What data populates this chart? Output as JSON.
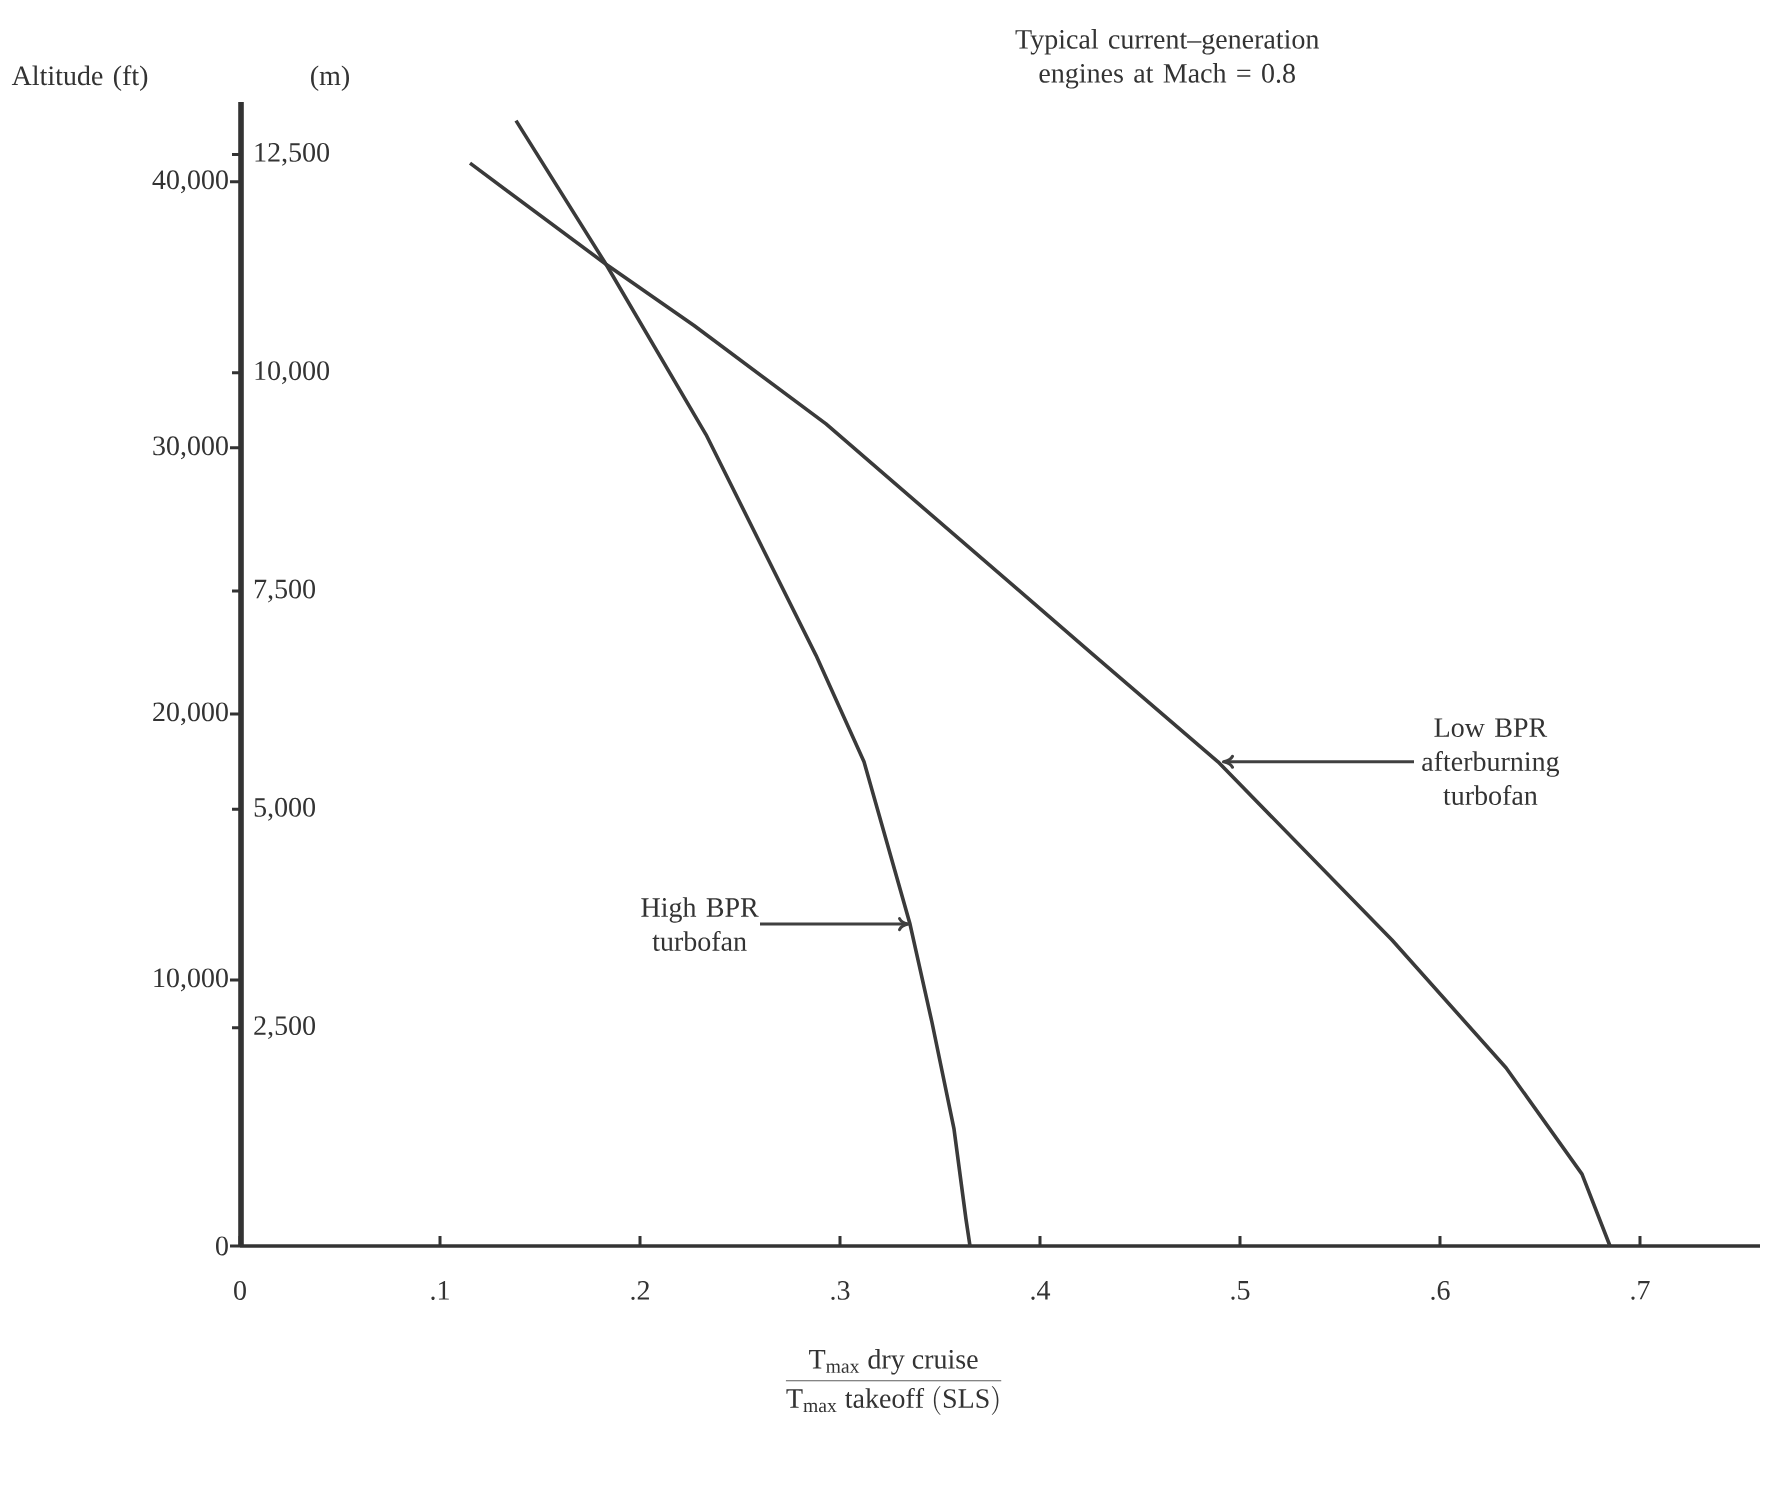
{
  "chart_data": {
    "type": "line",
    "xlabel": "\\frac{\\mathrm{T_{max}\\ dry\\ cruise}}{\\mathrm{T_{max}\\ takeoff\\ (SLS)}}",
    "ylabel": "Altitude (ft)",
    "y2label": "(m)",
    "xlim": [
      0,
      0.76
    ],
    "xticks": [
      0,
      {
        "value": 0.1,
        "label": ".1"
      },
      {
        "value": 0.2,
        "label": ".2"
      },
      {
        "value": 0.3,
        "label": ".3"
      },
      {
        "value": 0.4,
        "label": ".4"
      },
      {
        "value": 0.5,
        "label": ".5"
      },
      {
        "value": 0.6,
        "label": ".6"
      },
      {
        "value": 0.7,
        "label": ".7"
      }
    ],
    "ylim": [
      0,
      43000
    ],
    "yticks": [
      0,
      {
        "value": 10000,
        "label": "10,000"
      },
      {
        "value": 20000,
        "label": "20,000"
      },
      {
        "value": 30000,
        "label": "30,000"
      },
      {
        "value": 40000,
        "label": "40,000"
      }
    ],
    "y2lim": [
      0,
      13100
    ],
    "y2ticks": [
      {
        "value": 2500,
        "label": "2,500"
      },
      {
        "value": 5000,
        "label": "5,000"
      },
      {
        "value": 7500,
        "label": "7,500"
      },
      {
        "value": 10000,
        "label": "10,000"
      },
      {
        "value": 12500,
        "label": "12,500"
      }
    ],
    "marker": "none",
    "line_style": "solid",
    "series": [
      {
        "color": "#3a3a3a",
        "x": [
          0.365,
          0.363,
          0.357,
          0.346,
          0.335,
          0.312,
          0.288,
          0.233,
          0.183,
          0.138
        ],
        "values": [
          0,
          1000,
          4400,
          8400,
          12100,
          18200,
          22200,
          30500,
          36900,
          42300
        ]
      },
      {
        "color": "#3a3a3a",
        "x": [
          0.685,
          0.671,
          0.633,
          0.576,
          0.489,
          0.427,
          0.293,
          0.227,
          0.183,
          0.115
        ],
        "values": [
          0,
          2700,
          6700,
          11500,
          18200,
          22200,
          30900,
          34600,
          36900,
          40700
        ]
      }
    ],
    "annotations": [
      "Typical current–generation engines at Mach = 0.8",
      {
        "text": "High BPR turbofan",
        "x": 0.335,
        "y": 12100
      },
      {
        "text": "Low BPR afterburning turbofan",
        "x": 0.491,
        "y": 18200
      }
    ]
  }
}
